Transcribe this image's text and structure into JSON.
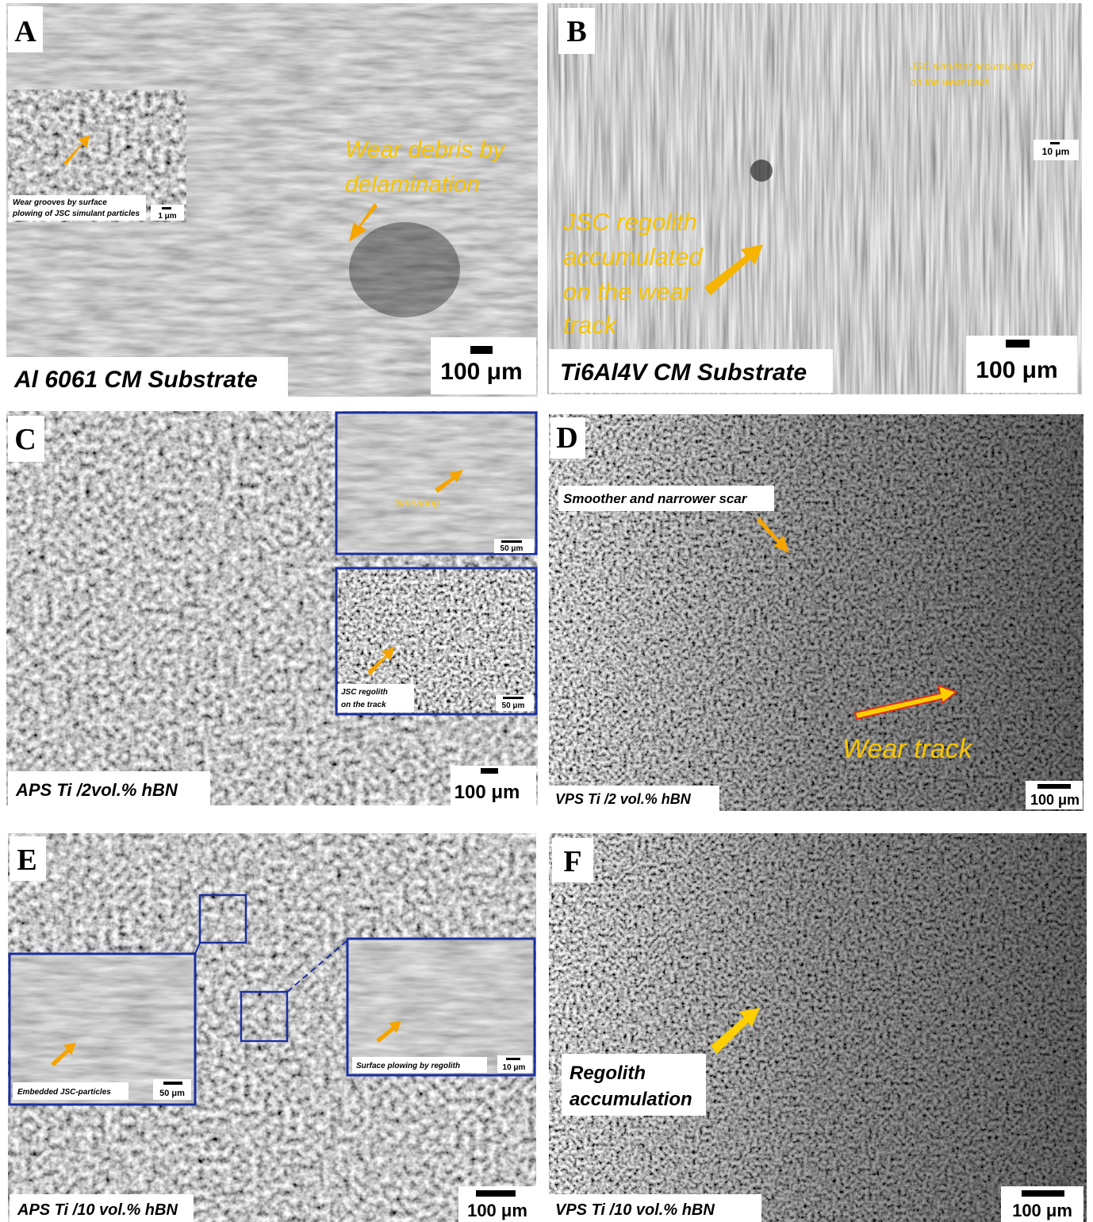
{
  "panels": [
    {
      "letter": "A",
      "caption": "Al 6061 CM Substrate",
      "scale_bar": "100 μm",
      "annotations": [
        "Wear debris by",
        "delamination"
      ],
      "insets": [
        {
          "caption": [
            "Wear grooves by surface",
            "plowing of JSC simulant particles"
          ],
          "scale_bar": "1 μm"
        }
      ]
    },
    {
      "letter": "B",
      "caption": "Ti6Al4V CM Substrate",
      "scale_bar": "100 μm",
      "annotations": [
        "JSC regolith",
        "accumulated",
        "on the wear",
        "track"
      ],
      "insets": [
        {
          "caption": [
            "JSC simulant accumulated",
            "on the wear track"
          ],
          "scale_bar": "10 μm"
        }
      ]
    },
    {
      "letter": "C",
      "caption": "APS Ti /2vol.% hBN",
      "scale_bar": "100 μm",
      "annotations": [],
      "insets": [
        {
          "caption": [
            "Smearing"
          ],
          "scale_bar": "50 μm"
        },
        {
          "caption": [
            "JSC regolith",
            "on the track"
          ],
          "scale_bar": "50 μm"
        }
      ]
    },
    {
      "letter": "D",
      "caption": "VPS Ti /2 vol.% hBN",
      "scale_bar": "100 μm",
      "annotations": [
        "Smoother and narrower scar",
        "Wear track"
      ],
      "insets": []
    },
    {
      "letter": "E",
      "caption": "APS Ti /10 vol.% hBN",
      "scale_bar": "100 μm",
      "annotations": [],
      "insets": [
        {
          "caption": [
            "Embedded JSC-particles"
          ],
          "scale_bar": "50 μm"
        },
        {
          "caption": [
            "Surface plowing by regolith"
          ],
          "scale_bar": "10 μm"
        }
      ]
    },
    {
      "letter": "F",
      "caption": "VPS Ti /10 vol.% hBN",
      "scale_bar": "100 μm",
      "annotations": [
        "Regolith",
        "accumulation"
      ],
      "insets": []
    }
  ]
}
